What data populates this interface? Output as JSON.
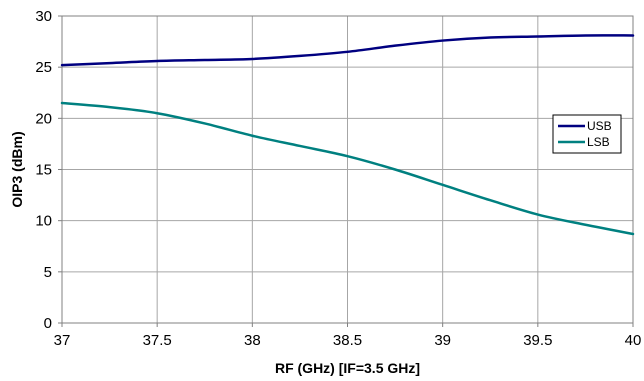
{
  "chart_data": {
    "type": "line",
    "title": "",
    "xlabel": "RF (GHz) [IF=3.5 GHz]",
    "ylabel": "OIP3 (dBm)",
    "xlim": [
      37,
      40
    ],
    "ylim": [
      0,
      30
    ],
    "x_ticks": [
      "37",
      "37.5",
      "38",
      "38.5",
      "39",
      "39.5",
      "40"
    ],
    "y_ticks": [
      "0",
      "5",
      "10",
      "15",
      "20",
      "25",
      "30"
    ],
    "grid": true,
    "legend_position": "right",
    "series": [
      {
        "name": "USB",
        "color": "#000080",
        "x": [
          37,
          37.25,
          37.5,
          37.75,
          38,
          38.25,
          38.5,
          38.75,
          39,
          39.25,
          39.5,
          39.75,
          40
        ],
        "y": [
          25.2,
          25.4,
          25.6,
          25.7,
          25.8,
          26.1,
          26.5,
          27.1,
          27.6,
          27.9,
          28.0,
          28.1,
          28.1
        ]
      },
      {
        "name": "LSB",
        "color": "#008080",
        "x": [
          37,
          37.25,
          37.5,
          37.75,
          38,
          38.25,
          38.5,
          38.75,
          39,
          39.25,
          39.5,
          39.75,
          40
        ],
        "y": [
          21.5,
          21.1,
          20.5,
          19.5,
          18.3,
          17.3,
          16.3,
          15.0,
          13.5,
          12.0,
          10.6,
          9.6,
          8.7
        ]
      }
    ]
  }
}
